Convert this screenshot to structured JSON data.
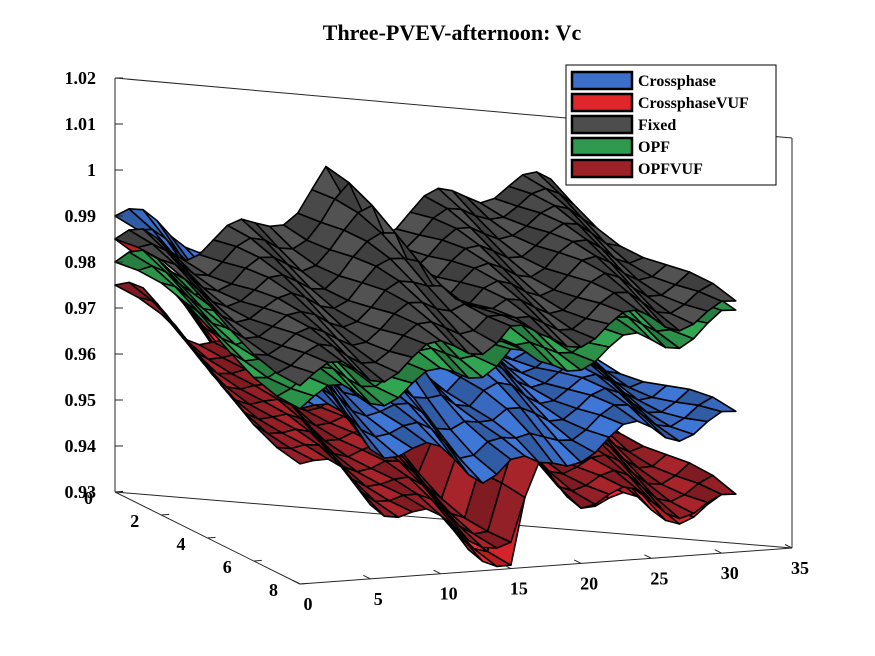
{
  "chart_data": {
    "type": "surface3d",
    "title": "Three-PVEV-afternoon: Vc",
    "xlabel": "",
    "ylabel": "",
    "zlabel": "",
    "x_ticks": [
      "0",
      "5",
      "10",
      "15",
      "20",
      "25",
      "30",
      "35"
    ],
    "y_ticks": [
      "0",
      "2",
      "4",
      "6",
      "8"
    ],
    "z_ticks": [
      "0.93",
      "0.94",
      "0.95",
      "0.96",
      "0.97",
      "0.98",
      "0.99",
      "1",
      "1.01",
      "1.02"
    ],
    "xlim": [
      0,
      35
    ],
    "ylim": [
      0,
      8
    ],
    "zlim": [
      0.93,
      1.02
    ],
    "grid": false,
    "legend_position": "top-right",
    "series": [
      {
        "name": "Crossphase",
        "color": "#3b6fc9",
        "approx_values_by_x": {
          "x": [
            0,
            5,
            10,
            13,
            15,
            17,
            20,
            25,
            30
          ],
          "z_near_y0": [
            0.99,
            0.985,
            0.975,
            0.97,
            0.98,
            0.97,
            0.968,
            0.962,
            0.96
          ],
          "z_near_y8": [
            0.97,
            0.96,
            0.955,
            0.952,
            0.953,
            0.95,
            0.955,
            0.958,
            0.958
          ]
        }
      },
      {
        "name": "CrossphaseVUF",
        "color": "#e0262b",
        "approx_values_by_x": {
          "x": [
            0,
            5,
            10,
            13,
            15,
            17,
            20,
            25,
            30
          ],
          "z_near_y0": [
            0.985,
            0.975,
            0.962,
            0.955,
            0.95,
            0.975,
            0.96,
            0.95,
            0.945
          ],
          "z_near_y8": [
            0.96,
            0.95,
            0.94,
            0.935,
            0.93,
            0.955,
            0.945,
            0.94,
            0.94
          ]
        }
      },
      {
        "name": "Fixed",
        "color": "#4d4d4d",
        "approx_values_by_x": {
          "x": [
            0,
            5,
            10,
            13,
            15,
            17,
            20,
            25,
            30
          ],
          "z_near_y0": [
            0.985,
            0.982,
            0.985,
            0.99,
            0.995,
            0.983,
            0.985,
            0.99,
            0.99
          ],
          "z_near_y8": [
            0.975,
            0.975,
            0.978,
            0.98,
            0.982,
            0.978,
            0.98,
            0.982,
            0.982
          ]
        }
      },
      {
        "name": "OPF",
        "color": "#2f9a4e",
        "approx_values_by_x": {
          "x": [
            0,
            5,
            10,
            13,
            15,
            17,
            20,
            25,
            30
          ],
          "z_near_y0": [
            0.98,
            0.978,
            0.98,
            0.982,
            0.985,
            0.978,
            0.98,
            0.982,
            0.985
          ],
          "z_near_y8": [
            0.97,
            0.97,
            0.972,
            0.975,
            0.977,
            0.972,
            0.975,
            0.977,
            0.98
          ]
        }
      },
      {
        "name": "OPFVUF",
        "color": "#9c2228",
        "approx_values_by_x": {
          "x": [
            0,
            5,
            10,
            13,
            15,
            17,
            20,
            25,
            30
          ],
          "z_near_y0": [
            0.975,
            0.965,
            0.955,
            0.95,
            0.95,
            0.968,
            0.958,
            0.952,
            0.95
          ],
          "z_near_y8": [
            0.958,
            0.948,
            0.94,
            0.938,
            0.935,
            0.95,
            0.945,
            0.942,
            0.94
          ]
        }
      }
    ]
  }
}
